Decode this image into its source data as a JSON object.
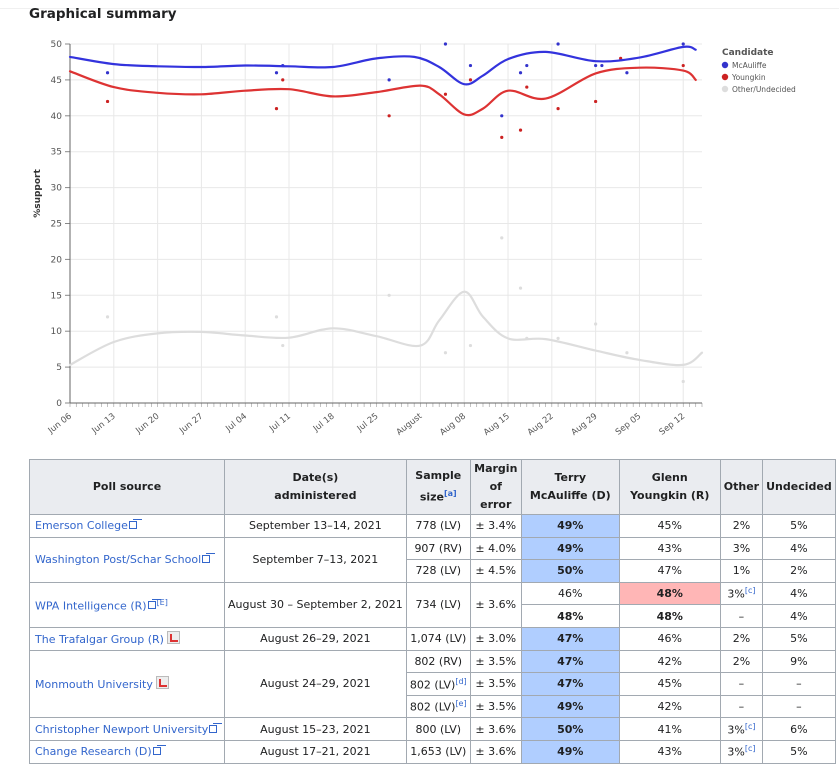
{
  "heading": "Graphical summary",
  "chart_data": {
    "type": "line",
    "ylabel": "%support",
    "ylim": [
      0,
      50
    ],
    "yticks": [
      0,
      5,
      10,
      15,
      20,
      25,
      30,
      35,
      40,
      45,
      50
    ],
    "xlim": [
      "2021-06-06",
      "2021-09-15"
    ],
    "xticks": [
      {
        "date": "2021-06-06",
        "label": "Jun 06"
      },
      {
        "date": "2021-06-13",
        "label": "Jun 13"
      },
      {
        "date": "2021-06-20",
        "label": "Jun 20"
      },
      {
        "date": "2021-06-27",
        "label": "Jun 27"
      },
      {
        "date": "2021-07-04",
        "label": "Jul 04"
      },
      {
        "date": "2021-07-11",
        "label": "Jul 11"
      },
      {
        "date": "2021-07-18",
        "label": "Jul 18"
      },
      {
        "date": "2021-07-25",
        "label": "Jul 25"
      },
      {
        "date": "2021-08-01",
        "label": "August"
      },
      {
        "date": "2021-08-08",
        "label": "Aug 08"
      },
      {
        "date": "2021-08-15",
        "label": "Aug 15"
      },
      {
        "date": "2021-08-22",
        "label": "Aug 22"
      },
      {
        "date": "2021-08-29",
        "label": "Aug 29"
      },
      {
        "date": "2021-09-05",
        "label": "Sep 05"
      },
      {
        "date": "2021-09-12",
        "label": "Sep 12"
      }
    ],
    "grid": true,
    "legend": {
      "title": "Candidate",
      "position": "top-right"
    },
    "series": [
      {
        "name": "McAuliffe",
        "color": "#3333cc",
        "line_color": "#3333dd",
        "points": [
          [
            "2021-06-12",
            46
          ],
          [
            "2021-07-09",
            46
          ],
          [
            "2021-07-10",
            47
          ],
          [
            "2021-07-27",
            45
          ],
          [
            "2021-08-05",
            50
          ],
          [
            "2021-08-09",
            47
          ],
          [
            "2021-08-14",
            40
          ],
          [
            "2021-08-17",
            46
          ],
          [
            "2021-08-18",
            47
          ],
          [
            "2021-08-23",
            50
          ],
          [
            "2021-08-29",
            47
          ],
          [
            "2021-08-30",
            47
          ],
          [
            "2021-09-03",
            46
          ],
          [
            "2021-09-12",
            50
          ]
        ],
        "trend": [
          [
            "2021-06-06",
            48.2
          ],
          [
            "2021-06-13",
            47.2
          ],
          [
            "2021-06-20",
            46.9
          ],
          [
            "2021-06-27",
            46.8
          ],
          [
            "2021-07-04",
            47.0
          ],
          [
            "2021-07-11",
            46.9
          ],
          [
            "2021-07-18",
            46.8
          ],
          [
            "2021-07-25",
            48.0
          ],
          [
            "2021-07-31",
            48.2
          ],
          [
            "2021-08-04",
            46.8
          ],
          [
            "2021-08-08",
            44.4
          ],
          [
            "2021-08-11",
            45.6
          ],
          [
            "2021-08-15",
            47.9
          ],
          [
            "2021-08-21",
            48.9
          ],
          [
            "2021-08-29",
            47.6
          ],
          [
            "2021-09-05",
            48.1
          ],
          [
            "2021-09-12",
            49.6
          ],
          [
            "2021-09-14",
            49.2
          ]
        ]
      },
      {
        "name": "Youngkin",
        "color": "#cc2222",
        "line_color": "#dd3333",
        "points": [
          [
            "2021-06-12",
            42
          ],
          [
            "2021-07-09",
            41
          ],
          [
            "2021-07-10",
            45
          ],
          [
            "2021-07-27",
            40
          ],
          [
            "2021-08-05",
            43
          ],
          [
            "2021-08-09",
            45
          ],
          [
            "2021-08-14",
            37
          ],
          [
            "2021-08-17",
            38
          ],
          [
            "2021-08-18",
            44
          ],
          [
            "2021-08-23",
            41
          ],
          [
            "2021-08-29",
            42
          ],
          [
            "2021-09-02",
            48
          ],
          [
            "2021-09-12",
            47
          ]
        ],
        "trend": [
          [
            "2021-06-06",
            46.2
          ],
          [
            "2021-06-13",
            44.0
          ],
          [
            "2021-06-20",
            43.2
          ],
          [
            "2021-06-27",
            43.0
          ],
          [
            "2021-07-04",
            43.5
          ],
          [
            "2021-07-11",
            43.7
          ],
          [
            "2021-07-18",
            42.7
          ],
          [
            "2021-07-25",
            43.3
          ],
          [
            "2021-08-01",
            44.2
          ],
          [
            "2021-08-04",
            43.0
          ],
          [
            "2021-08-08",
            40.2
          ],
          [
            "2021-08-11",
            41.0
          ],
          [
            "2021-08-15",
            43.5
          ],
          [
            "2021-08-21",
            42.4
          ],
          [
            "2021-08-29",
            45.9
          ],
          [
            "2021-09-05",
            46.7
          ],
          [
            "2021-09-12",
            46.3
          ],
          [
            "2021-09-14",
            45.0
          ]
        ]
      },
      {
        "name": "Other/Undecided",
        "color": "#dddddd",
        "line_color": "#dddddd",
        "points": [
          [
            "2021-06-12",
            12
          ],
          [
            "2021-07-09",
            12
          ],
          [
            "2021-07-10",
            8
          ],
          [
            "2021-07-27",
            15
          ],
          [
            "2021-08-05",
            7
          ],
          [
            "2021-08-09",
            8
          ],
          [
            "2021-08-14",
            23
          ],
          [
            "2021-08-17",
            16
          ],
          [
            "2021-08-18",
            9
          ],
          [
            "2021-08-23",
            9
          ],
          [
            "2021-08-29",
            11
          ],
          [
            "2021-09-03",
            7
          ],
          [
            "2021-09-12",
            3
          ]
        ],
        "trend": [
          [
            "2021-06-06",
            5.3
          ],
          [
            "2021-06-13",
            8.5
          ],
          [
            "2021-06-20",
            9.7
          ],
          [
            "2021-06-27",
            9.9
          ],
          [
            "2021-07-04",
            9.4
          ],
          [
            "2021-07-11",
            9.1
          ],
          [
            "2021-07-18",
            10.4
          ],
          [
            "2021-07-25",
            9.3
          ],
          [
            "2021-08-01",
            8.0
          ],
          [
            "2021-08-04",
            11.5
          ],
          [
            "2021-08-08",
            15.5
          ],
          [
            "2021-08-11",
            12.0
          ],
          [
            "2021-08-15",
            9.0
          ],
          [
            "2021-08-21",
            8.9
          ],
          [
            "2021-08-29",
            7.3
          ],
          [
            "2021-09-05",
            6.0
          ],
          [
            "2021-09-12",
            5.3
          ],
          [
            "2021-09-15",
            7.0
          ]
        ]
      }
    ]
  },
  "table": {
    "headers": [
      "Poll source",
      "Date(s) administered",
      "Sample size",
      "Margin of error",
      "Terry McAuliffe (D)",
      "Glenn Youngkin (R)",
      "Other",
      "Undecided"
    ],
    "header_lines": {
      "date": [
        "Date(s)",
        "administered"
      ],
      "sample": [
        "Sample",
        "size"
      ],
      "sample_note": "[a]",
      "margin": [
        "Margin",
        "of error"
      ],
      "mcauliffe": [
        "Terry",
        "McAuliffe (D)"
      ],
      "youngkin": [
        "Glenn",
        "Youngkin (R)"
      ]
    },
    "polls": [
      {
        "source": "Emerson College",
        "icon": "external-link",
        "date": "September 13–14, 2021",
        "rows": [
          {
            "sample": "778 (LV)",
            "margin": "± 3.4%",
            "mcauliffe": "49%",
            "youngkin": "45%",
            "other": "2%",
            "undecided": "5%",
            "leader": "mcauliffe"
          }
        ]
      },
      {
        "source": "Washington Post/Schar School",
        "icon": "external-link",
        "date": "September 7–13, 2021",
        "rows": [
          {
            "sample": "907 (RV)",
            "margin": "± 4.0%",
            "mcauliffe": "49%",
            "youngkin": "43%",
            "other": "3%",
            "undecided": "4%",
            "leader": "mcauliffe"
          },
          {
            "sample": "728 (LV)",
            "margin": "± 4.5%",
            "mcauliffe": "50%",
            "youngkin": "47%",
            "other": "1%",
            "undecided": "2%",
            "leader": "mcauliffe"
          }
        ]
      },
      {
        "source": "WPA Intelligence (R)",
        "icon": "external-link",
        "note": "[E]",
        "date": "August 30 – September 2, 2021",
        "sample": "734 (LV)",
        "margin": "± 3.6%",
        "rows": [
          {
            "mcauliffe": "46%",
            "youngkin": "48%",
            "other": "3%",
            "other_note": "[c]",
            "undecided": "4%",
            "leader": "youngkin"
          },
          {
            "mcauliffe": "48%",
            "youngkin": "48%",
            "other": "–",
            "undecided": "4%",
            "leader": "tie"
          }
        ]
      },
      {
        "source": "The Trafalgar Group (R)",
        "icon": "pdf",
        "date": "August 26–29, 2021",
        "rows": [
          {
            "sample": "1,074 (LV)",
            "margin": "± 3.0%",
            "mcauliffe": "47%",
            "youngkin": "46%",
            "other": "2%",
            "undecided": "5%",
            "leader": "mcauliffe"
          }
        ]
      },
      {
        "source": "Monmouth University",
        "icon": "pdf",
        "date": "August 24–29, 2021",
        "rows": [
          {
            "sample": "802 (RV)",
            "margin": "± 3.5%",
            "mcauliffe": "47%",
            "youngkin": "42%",
            "other": "2%",
            "undecided": "9%",
            "leader": "mcauliffe"
          },
          {
            "sample": "802 (LV)",
            "sample_note": "[d]",
            "margin": "± 3.5%",
            "mcauliffe": "47%",
            "youngkin": "45%",
            "other": "–",
            "undecided": "–",
            "leader": "mcauliffe"
          },
          {
            "sample": "802 (LV)",
            "sample_note": "[e]",
            "margin": "± 3.5%",
            "mcauliffe": "49%",
            "youngkin": "42%",
            "other": "–",
            "undecided": "–",
            "leader": "mcauliffe"
          }
        ]
      },
      {
        "source": "Christopher Newport University",
        "icon": "external-link",
        "date": "August 15–23, 2021",
        "rows": [
          {
            "sample": "800 (LV)",
            "margin": "± 3.6%",
            "mcauliffe": "50%",
            "youngkin": "41%",
            "other": "3%",
            "other_note": "[c]",
            "undecided": "6%",
            "leader": "mcauliffe"
          }
        ]
      },
      {
        "source": "Change Research (D)",
        "icon": "external-link",
        "date": "August 17–21, 2021",
        "rows": [
          {
            "sample": "1,653 (LV)",
            "margin": "± 3.6%",
            "mcauliffe": "49%",
            "youngkin": "43%",
            "other": "3%",
            "other_note": "[c]",
            "undecided": "5%",
            "leader": "mcauliffe"
          }
        ]
      }
    ],
    "colors": {
      "dem_leader": "#b0ceff",
      "rep_leader": "#ffb6b6",
      "header_bg": "#eaecf0",
      "border": "#a2a9b1",
      "link": "#3366cc"
    }
  }
}
